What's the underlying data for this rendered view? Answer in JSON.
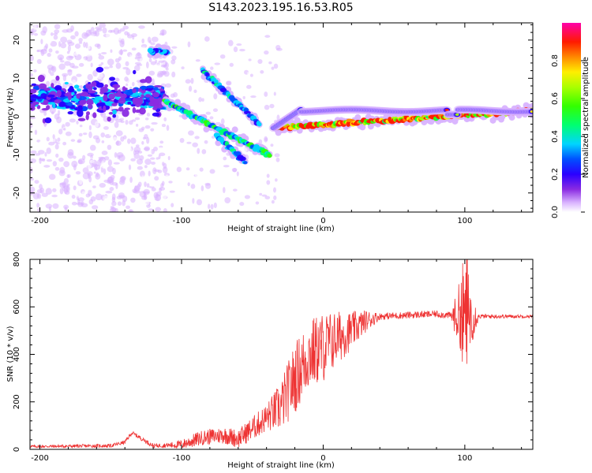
{
  "title": "S143.2023.195.16.53.R05",
  "chart_data": [
    {
      "type": "heatmap",
      "xlabel": "Height of straight line (km)",
      "ylabel": "Frequency (Hz)",
      "xlim": [
        -207,
        148
      ],
      "ylim": [
        -25,
        24.5
      ],
      "xticks": [
        -200,
        -100,
        0,
        100
      ],
      "yticks": [
        -20,
        -10,
        0,
        10,
        20
      ],
      "colorbar": {
        "label": "Normalized spectral amplitude",
        "range": [
          0,
          1
        ],
        "ticks": [
          "0.0",
          "0.2",
          "0.4",
          "0.6",
          "0.8"
        ],
        "colormap": "gist_ncar-like (white, violet, blue, cyan, green, yellow, red, magenta)"
      },
      "features": [
        {
          "name": "low-altitude scattered band",
          "x": [
            -207,
            -110
          ],
          "y_center": 5,
          "level": 0.3
        },
        {
          "name": "upper ghost track",
          "x": [
            -110,
            -122
          ],
          "y": [
            17,
            17
          ],
          "level": 0.3
        },
        {
          "name": "diagonal track 1",
          "x": [
            -112,
            -38
          ],
          "y": [
            4,
            -10
          ],
          "level": 0.45
        },
        {
          "name": "diagonal track 2",
          "x": [
            -85,
            -45
          ],
          "y": [
            12,
            -2
          ],
          "level": 0.35
        },
        {
          "name": "diagonal track 3",
          "x": [
            -75,
            -55
          ],
          "y": [
            -5,
            -12
          ],
          "level": 0.35
        },
        {
          "name": "main carrier line",
          "x": [
            -35,
            148
          ],
          "y": [
            -3,
            1.5
          ],
          "level": 0.9
        }
      ]
    },
    {
      "type": "line",
      "xlabel": "Height of straight line (km)",
      "ylabel": "SNR (10 * v/v)",
      "xlim": [
        -207,
        148
      ],
      "ylim": [
        0,
        800
      ],
      "xticks": [
        -200,
        -100,
        0,
        100
      ],
      "yticks": [
        0,
        200,
        400,
        600,
        800
      ],
      "color": "#ee3333",
      "profile": {
        "x": [
          -207,
          -150,
          -140,
          -135,
          -120,
          -100,
          -85,
          -70,
          -60,
          -45,
          -30,
          -20,
          -10,
          0,
          10,
          20,
          30,
          40,
          60,
          80,
          95,
          100,
          105,
          120,
          148
        ],
        "y": [
          12,
          15,
          30,
          70,
          15,
          20,
          50,
          60,
          45,
          110,
          180,
          300,
          400,
          430,
          470,
          500,
          540,
          560,
          565,
          570,
          560,
          600,
          560,
          560,
          560
        ]
      },
      "noise": {
        "x": [
          -207,
          -140,
          -110,
          -90,
          -60,
          -40,
          -20,
          0,
          20,
          40,
          90,
          100,
          110,
          148
        ],
        "amplitude": [
          6,
          8,
          10,
          30,
          40,
          60,
          150,
          150,
          80,
          15,
          15,
          220,
          10,
          6
        ]
      }
    }
  ]
}
